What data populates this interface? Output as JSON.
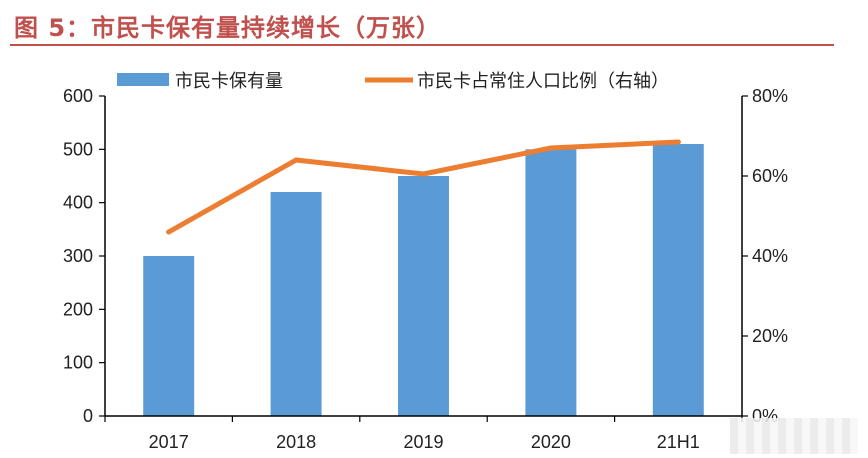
{
  "figure": {
    "title": "图 5：市民卡保有量持续增长（万张）"
  },
  "chart_data": {
    "type": "bar",
    "categories": [
      "2017",
      "2018",
      "2019",
      "2020",
      "21H1"
    ],
    "series": [
      {
        "name": "市民卡保有量",
        "kind": "bar",
        "axis": "left",
        "values": [
          300,
          420,
          450,
          500,
          510
        ],
        "color": "#5b9bd5"
      },
      {
        "name": "市民卡占常住人口比例（右轴）",
        "kind": "line",
        "axis": "right",
        "values": [
          46,
          64,
          60.5,
          67,
          68.5
        ],
        "color": "#ed7d31"
      }
    ],
    "y_left": {
      "range": [
        0,
        600
      ],
      "ticks": [
        "0",
        "100",
        "200",
        "300",
        "400",
        "500",
        "600"
      ]
    },
    "y_right": {
      "range": [
        0,
        80
      ],
      "ticks": [
        "0%",
        "20%",
        "40%",
        "60%",
        "80%"
      ]
    },
    "grid": false,
    "legend_position": "top"
  }
}
